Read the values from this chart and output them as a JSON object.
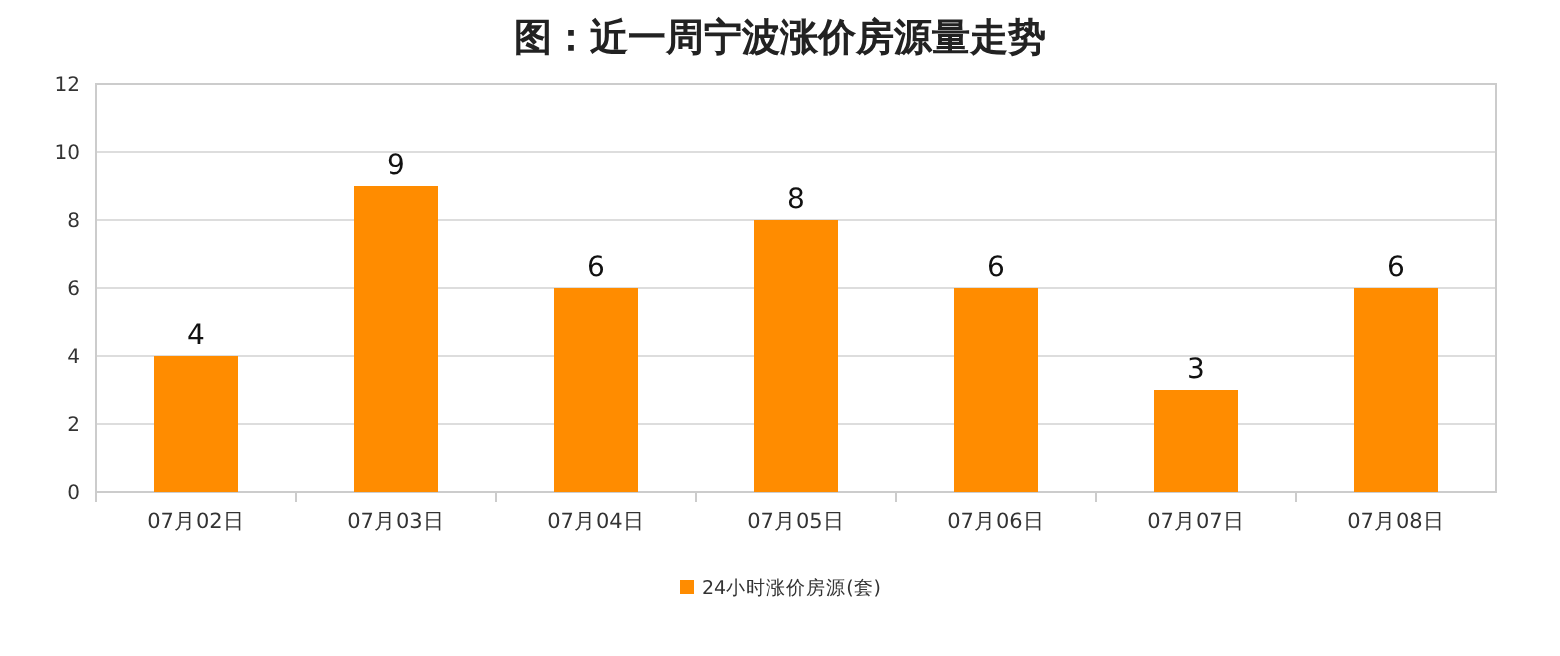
{
  "chart_data": {
    "type": "bar",
    "title": "图：近一周宁波涨价房源量走势",
    "categories": [
      "07月02日",
      "07月03日",
      "07月04日",
      "07月05日",
      "07月06日",
      "07月07日",
      "07月08日"
    ],
    "series": [
      {
        "name": "24小时涨价房源(套)",
        "color": "#ff8c00",
        "values": [
          4,
          9,
          6,
          8,
          6,
          3,
          6
        ]
      }
    ],
    "ylim": [
      0,
      12
    ],
    "yticks": [
      0,
      2,
      4,
      6,
      8,
      10,
      12
    ],
    "grid": "y",
    "legend": "bottom",
    "data_labels": true
  }
}
